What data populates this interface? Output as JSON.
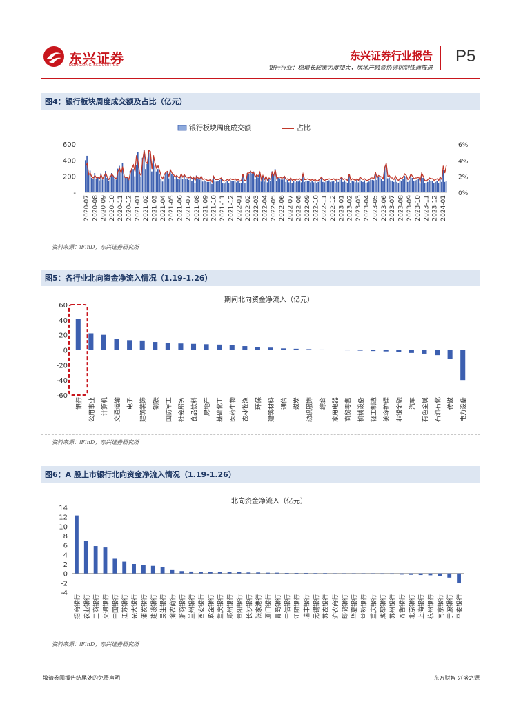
{
  "header": {
    "logo_cn": "东兴证券",
    "logo_en": "DONGXING SECURITIES",
    "report_title": "东兴证券行业报告",
    "subtitle": "银行行业：稳增长政策力度加大，房地产融资协调机制快速推进",
    "page": "P5"
  },
  "colors": {
    "brand_red": "#c8161d",
    "bar_blue": "#3c5fb0",
    "navy": "#1f3864"
  },
  "footer": {
    "left": "敬请参阅报告结尾处的免责声明",
    "right": "东方财智  兴盛之源"
  },
  "figures": [
    {
      "title": "图4：银行板块周度成交额及占比（亿元）",
      "source": "资料来源：iFinD，东兴证券研究所"
    },
    {
      "title": "图5：各行业北向资金净流入情况（1.19-1.26）",
      "source": "资料来源：iFinD，东兴证券研究所"
    },
    {
      "title": "图6：A 股上市银行北向资金净流入情况（1.19-1.26）",
      "source": "资料来源：iFinD，东兴证券研究所"
    }
  ],
  "chart_data": [
    {
      "type": "bar",
      "title": "",
      "legend": [
        "银行板块周度成交额",
        "占比"
      ],
      "legend_position": "top-center",
      "y_left": {
        "lim": [
          0,
          600
        ],
        "ticks": [
          "-",
          "200",
          "400",
          "600"
        ]
      },
      "y_right": {
        "lim": [
          0,
          6
        ],
        "ticks": [
          "0%",
          "2%",
          "4%",
          "6%"
        ]
      },
      "x_labels": [
        "2020-07",
        "2020-08",
        "2020-09",
        "2020-10",
        "2020-11",
        "2020-12",
        "2021-01",
        "2021-02",
        "2021-03",
        "2021-04",
        "2021-05",
        "2021-06",
        "2021-07",
        "2021-08",
        "2021-09",
        "2021-10",
        "2021-11",
        "2021-12",
        "2022-01",
        "2022-02",
        "2022-03",
        "2022-04",
        "2022-05",
        "2022-06",
        "2022-07",
        "2022-08",
        "2022-09",
        "2022-10",
        "2022-11",
        "2022-12",
        "2023-01",
        "2023-02",
        "2023-03",
        "2023-04",
        "2023-05",
        "2023-06",
        "2023-07",
        "2023-08",
        "2023-09",
        "2023-10",
        "2023-11",
        "2023-12",
        "2024-01"
      ],
      "weekly_turnover": [
        400,
        455,
        230,
        270,
        180,
        165,
        240,
        170,
        190,
        150,
        235,
        160,
        210,
        265,
        180,
        140,
        205,
        240,
        210,
        175,
        160,
        295,
        330,
        260,
        360,
        210,
        180,
        185,
        155,
        265,
        290,
        290,
        200,
        340,
        500,
        250,
        200,
        430,
        530,
        290,
        355,
        530,
        490,
        260,
        420,
        330,
        260,
        290,
        230,
        165,
        135,
        200,
        235,
        250,
        175,
        285,
        230,
        205,
        165,
        200,
        170,
        160,
        225,
        165,
        220,
        170,
        175,
        155,
        190,
        145,
        180,
        120,
        210,
        175,
        160,
        200,
        135,
        150,
        140,
        130,
        130,
        135,
        105,
        190,
        135,
        135,
        140,
        155,
        165,
        120,
        110,
        125,
        140,
        120,
        150,
        140,
        145,
        150,
        125,
        140,
        115,
        120,
        225,
        115,
        120,
        240,
        230,
        270,
        235,
        260,
        170,
        215,
        185,
        250,
        135,
        205,
        135,
        195,
        125,
        165,
        140,
        260,
        210,
        290,
        145,
        180,
        175,
        160,
        160,
        190,
        130,
        155,
        125,
        160,
        120,
        140,
        125,
        145,
        135,
        150,
        125,
        230,
        130,
        140,
        145,
        140,
        125,
        140,
        125,
        135,
        115,
        130,
        150,
        180,
        130,
        125,
        145,
        140,
        150,
        130,
        135,
        145,
        120,
        155,
        130,
        155,
        180,
        130,
        150,
        130,
        120,
        230,
        120,
        145,
        135,
        125,
        155,
        125,
        170,
        145,
        130,
        150,
        120,
        125,
        135,
        160,
        155,
        150,
        255,
        155,
        195,
        185,
        165,
        140,
        320,
        355,
        175,
        185,
        150,
        145,
        130,
        170,
        130,
        120,
        150,
        140,
        165,
        205,
        190,
        130,
        150,
        215,
        180,
        140,
        150,
        155,
        165,
        110,
        230,
        180,
        120,
        115,
        130,
        155,
        145,
        140,
        115,
        130,
        140,
        115,
        165,
        130,
        280,
        130,
        145
      ],
      "share_pct": [
        3.3,
        3.6,
        2.2,
        2.4,
        1.9,
        1.8,
        2.1,
        1.8,
        1.9,
        1.7,
        2.2,
        1.7,
        2.0,
        2.4,
        1.9,
        1.6,
        1.9,
        2.3,
        2.0,
        1.8,
        1.7,
        2.6,
        3.0,
        2.4,
        3.2,
        2.0,
        1.8,
        1.9,
        1.6,
        2.4,
        3.0,
        3.4,
        2.6,
        4.6,
        3.8,
        2.4,
        2.1,
        4.1,
        5.2,
        3.8,
        3.6,
        5.2,
        5.1,
        2.9,
        4.6,
        3.6,
        3.0,
        3.3,
        2.7,
        2.0,
        1.7,
        2.2,
        2.5,
        2.6,
        2.0,
        2.8,
        2.4,
        2.2,
        1.9,
        2.1,
        1.9,
        1.8,
        2.3,
        1.9,
        2.2,
        1.9,
        1.9,
        1.8,
        2.0,
        1.7,
        1.9,
        1.5,
        2.0,
        1.8,
        1.7,
        2.0,
        1.6,
        1.7,
        1.6,
        1.5,
        1.5,
        1.6,
        1.3,
        2.0,
        1.6,
        1.6,
        1.6,
        1.7,
        1.8,
        1.5,
        1.4,
        1.5,
        1.6,
        1.5,
        1.7,
        1.6,
        1.6,
        1.7,
        1.5,
        1.6,
        1.4,
        1.5,
        2.3,
        1.5,
        1.5,
        2.4,
        2.4,
        2.6,
        2.4,
        2.5,
        1.9,
        2.2,
        2.0,
        2.5,
        1.6,
        2.1,
        1.6,
        2.0,
        1.5,
        1.8,
        1.6,
        2.5,
        2.1,
        2.8,
        1.7,
        1.9,
        1.9,
        1.8,
        1.8,
        2.0,
        1.6,
        1.7,
        1.5,
        1.8,
        1.5,
        1.6,
        1.5,
        1.7,
        1.6,
        1.7,
        1.5,
        2.3,
        1.6,
        1.6,
        1.7,
        1.6,
        1.5,
        1.6,
        1.5,
        1.6,
        1.4,
        1.5,
        1.7,
        1.9,
        1.6,
        1.5,
        1.6,
        1.6,
        1.7,
        1.6,
        1.6,
        1.7,
        1.5,
        1.7,
        1.6,
        1.7,
        1.9,
        1.6,
        1.7,
        1.6,
        1.5,
        2.3,
        1.5,
        1.7,
        1.6,
        1.5,
        1.7,
        1.5,
        1.9,
        1.7,
        1.6,
        1.7,
        1.5,
        1.5,
        1.6,
        1.8,
        1.8,
        1.7,
        2.5,
        1.8,
        2.1,
        2.0,
        1.9,
        1.7,
        3.1,
        3.6,
        2.0,
        2.1,
        1.8,
        1.8,
        1.6,
        2.0,
        1.6,
        1.5,
        1.8,
        1.7,
        1.9,
        2.3,
        2.1,
        1.6,
        1.8,
        2.3,
        2.0,
        1.7,
        1.8,
        1.8,
        1.9,
        1.4,
        2.4,
        2.0,
        1.5,
        1.4,
        1.6,
        1.8,
        1.7,
        1.7,
        1.5,
        1.6,
        1.7,
        1.5,
        1.9,
        1.6,
        3.3,
        2.4,
        3.4
      ]
    },
    {
      "type": "bar",
      "title": "期间北向资金净流入（亿元）",
      "ylim": [
        -60,
        60
      ],
      "y_ticks": [
        "60",
        "40",
        "20",
        "0",
        "-20",
        "-40",
        "-60"
      ],
      "highlight": "银行",
      "categories": [
        "银行",
        "公用事业",
        "计算机",
        "交通运输",
        "电子",
        "建筑装饰",
        "钢铁",
        "国防军工",
        "社会服务",
        "食品饮料",
        "房地产",
        "基础化工",
        "医药生物",
        "农林牧渔",
        "环保",
        "建筑材料",
        "通信",
        "煤炭",
        "纺织服饰",
        "综合",
        "家用电器",
        "商贸零售",
        "机械设备",
        "轻工制造",
        "美容护理",
        "非银金融",
        "汽车",
        "有色金属",
        "石油石化",
        "传媒",
        "电力设备"
      ],
      "values": [
        41,
        22,
        20,
        15,
        13,
        12.5,
        10.5,
        9,
        8.5,
        8,
        7.5,
        7,
        6,
        5,
        3.5,
        3,
        2,
        1.5,
        1,
        0.5,
        0.3,
        -0.3,
        -1,
        -1.5,
        -2,
        -3,
        -4,
        -5,
        -7,
        -12,
        -40
      ]
    },
    {
      "type": "bar",
      "title": "北向资金净流入（亿元）",
      "ylim": [
        -4,
        14
      ],
      "y_ticks": [
        "14",
        "12",
        "10",
        "8",
        "6",
        "4",
        "2",
        "0",
        "-2",
        "-4"
      ],
      "categories": [
        "招商银行",
        "农业银行",
        "工商银行",
        "交通银行",
        "中国银行",
        "江苏银行",
        "光大银行",
        "浦发银行",
        "建设银行",
        "民生银行",
        "渝农商行",
        "浙商银行",
        "兰州银行",
        "西安银行",
        "紫金银行",
        "重庆银行",
        "郑州银行",
        "贵阳银行",
        "长沙银行",
        "张家港行",
        "厦门银行",
        "青岛银行",
        "中信银行",
        "江阴银行",
        "瑞丰银行",
        "无锡银行",
        "苏农银行",
        "沪农商行",
        "邮储银行",
        "华夏银行",
        "常熟银行",
        "重庆银行",
        "成都银行",
        "苏州银行",
        "齐鲁银行",
        "北京银行",
        "上海银行",
        "杭州银行",
        "南京银行",
        "宁波银行",
        "平安银行"
      ],
      "values": [
        12.3,
        6.9,
        5.8,
        5.5,
        3.1,
        2.5,
        2.0,
        1.8,
        1.6,
        1.3,
        0.7,
        0.5,
        0.4,
        0.35,
        0.3,
        0.3,
        0.25,
        0.25,
        0.2,
        0.2,
        0.15,
        0.15,
        0.1,
        0.1,
        0.1,
        0.05,
        0.05,
        0.0,
        -0.05,
        -0.1,
        -0.1,
        -0.15,
        -0.2,
        -0.2,
        -0.25,
        -0.3,
        -0.35,
        -0.4,
        -0.6,
        -0.9,
        -2.1
      ]
    }
  ]
}
